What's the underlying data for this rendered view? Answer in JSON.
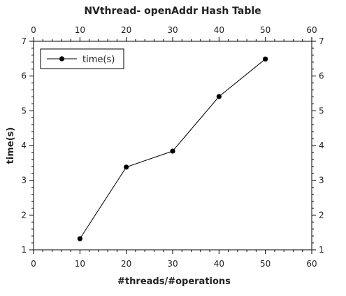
{
  "chart_data": {
    "type": "line",
    "title": "NVthread- openAddr Hash Table",
    "xlabel": "#threads/#operations",
    "ylabel": "time(s)",
    "xlim": [
      0,
      60
    ],
    "ylim": [
      1,
      7
    ],
    "x_ticks": [
      "0",
      "10",
      "20",
      "30",
      "40",
      "50",
      "60"
    ],
    "y_ticks": [
      "1",
      "2",
      "3",
      "4",
      "5",
      "6",
      "7"
    ],
    "mirror_ticks": true,
    "grid": false,
    "legend_position": "top-left",
    "series": [
      {
        "name": "time(s)",
        "x": [
          10,
          20,
          30,
          40,
          50
        ],
        "y": [
          1.32,
          3.38,
          3.84,
          5.41,
          6.49
        ],
        "color": "#000000",
        "marker": "circle"
      }
    ]
  }
}
